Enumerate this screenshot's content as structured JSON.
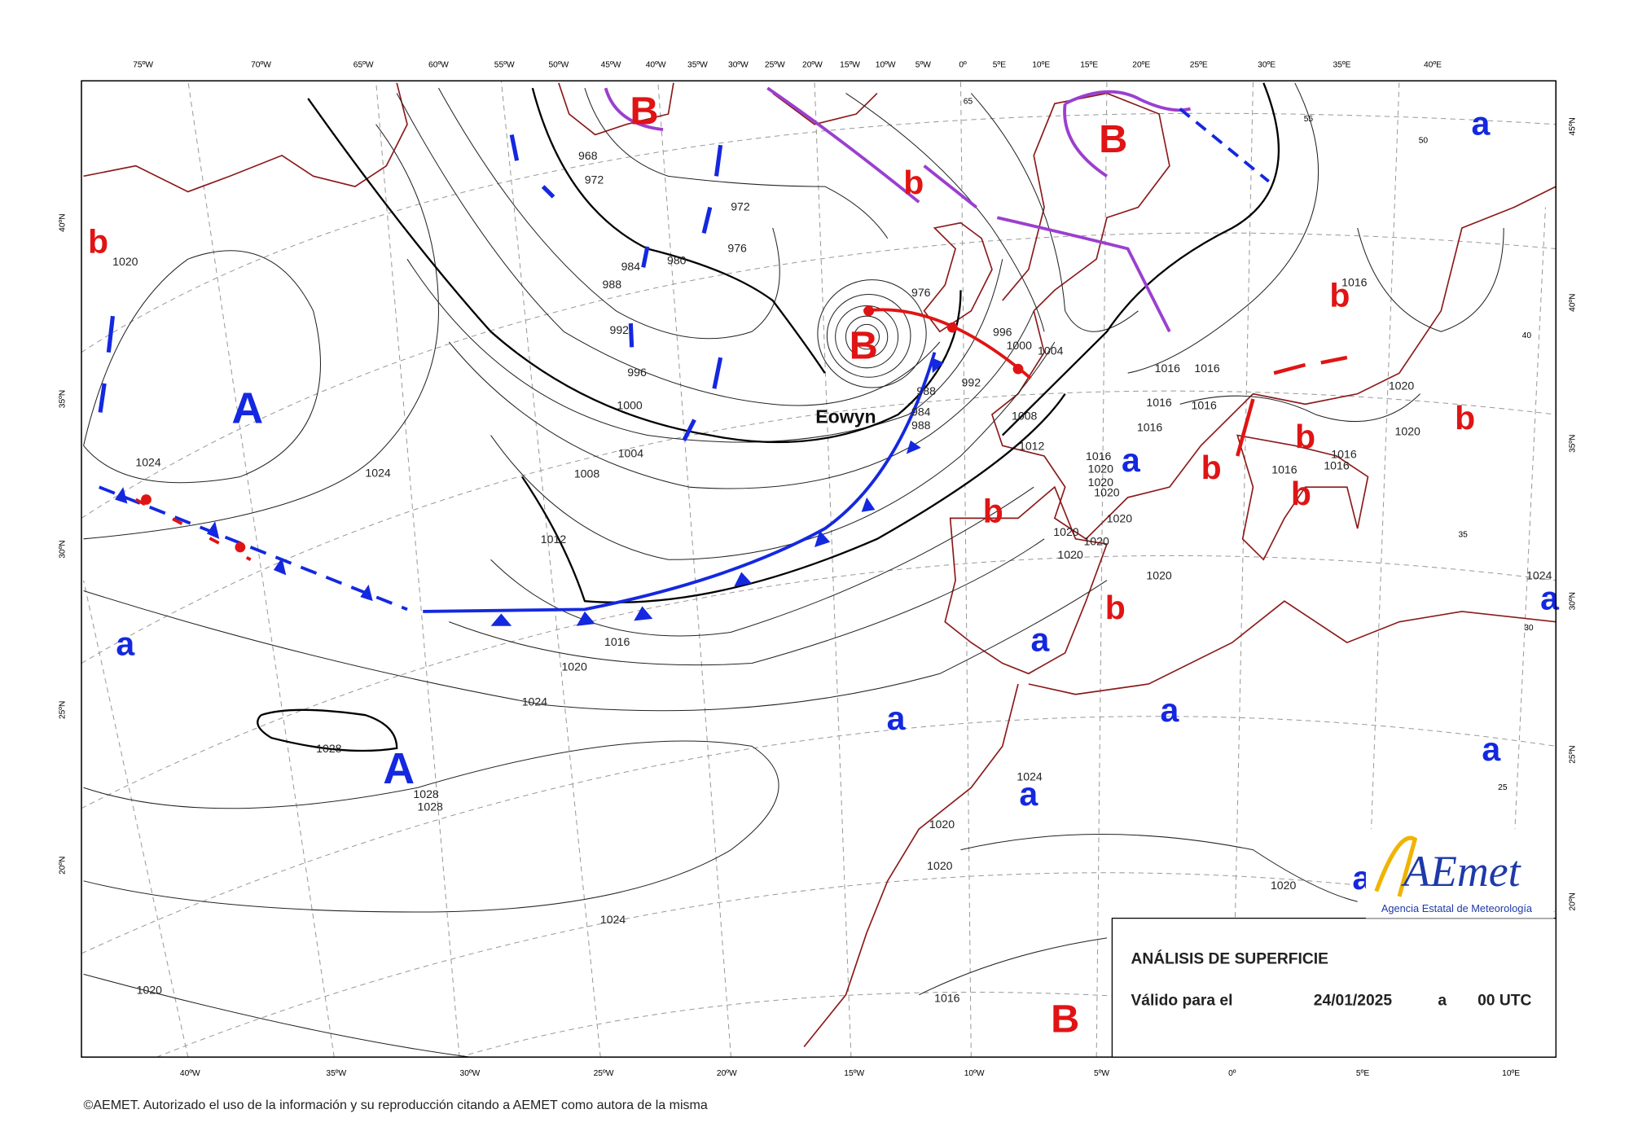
{
  "map": {
    "top_lon_labels": [
      "75ºW",
      "70ºW",
      "65ºW",
      "60ºW",
      "55ºW",
      "50ºW",
      "45ºW",
      "40ºW",
      "35ºW",
      "30ºW",
      "25ºW",
      "20ºW",
      "15ºW",
      "10ºW",
      "5ºW",
      "0º",
      "5ºE",
      "10ºE",
      "15ºE",
      "20ºE",
      "25ºE",
      "30ºE",
      "35ºE",
      "40ºE"
    ],
    "bottom_lon_labels": [
      "40ºW",
      "35ºW",
      "30ºW",
      "25ºW",
      "20ºW",
      "15ºW",
      "10ºW",
      "5ºW",
      "0º",
      "5ºE",
      "10ºE"
    ],
    "left_lat_labels": [
      "40ºN",
      "35ºN",
      "30ºN",
      "25ºN",
      "20ºN"
    ],
    "right_lat_labels": [
      "45ºN",
      "40ºN",
      "35ºN",
      "30ºN",
      "25ºN",
      "20ºN"
    ],
    "high_centers": [
      "A",
      "A"
    ],
    "high_minor": [
      "a",
      "a",
      "a",
      "a",
      "a",
      "a",
      "a",
      "a",
      "a",
      "a"
    ],
    "low_centers": [
      "B",
      "B",
      "B",
      "B"
    ],
    "low_minor": [
      "b",
      "b",
      "b",
      "b",
      "b",
      "b",
      "b",
      "b",
      "b"
    ],
    "storm_name": "Eowyn",
    "isobar_labels": [
      "1020",
      "1024",
      "1024",
      "1012",
      "1016",
      "1020",
      "1024",
      "1028",
      "1028",
      "1028",
      "1024",
      "1020",
      "1016",
      "1020",
      "1020",
      "1024",
      "1020",
      "968",
      "972",
      "972",
      "976",
      "980",
      "984",
      "988",
      "992",
      "996",
      "1000",
      "1004",
      "1008",
      "976",
      "996",
      "1000",
      "1004",
      "988",
      "984",
      "988",
      "992",
      "1008",
      "1012",
      "1016",
      "1020",
      "1020",
      "1020",
      "1020",
      "1020",
      "1020",
      "1020",
      "1020",
      "1016",
      "1016",
      "1016",
      "1016",
      "1016",
      "1016",
      "1020",
      "1020",
      "1016",
      "1016",
      "1016",
      "1024"
    ],
    "grid_labels": [
      "65",
      "55",
      "50",
      "40",
      "35",
      "30",
      "25"
    ]
  },
  "info_box": {
    "title": "ANÁLISIS DE SUPERFICIE",
    "valid_label": "Válido para el",
    "date": "24/01/2025",
    "separator": "a",
    "time": "00 UTC"
  },
  "logo": {
    "name": "AEmet",
    "subtitle": "Agencia Estatal de Meteorología"
  },
  "footer": "©AEMET. Autorizado el uso de la información y su reproducción citando a AEMET como autora de la misma"
}
